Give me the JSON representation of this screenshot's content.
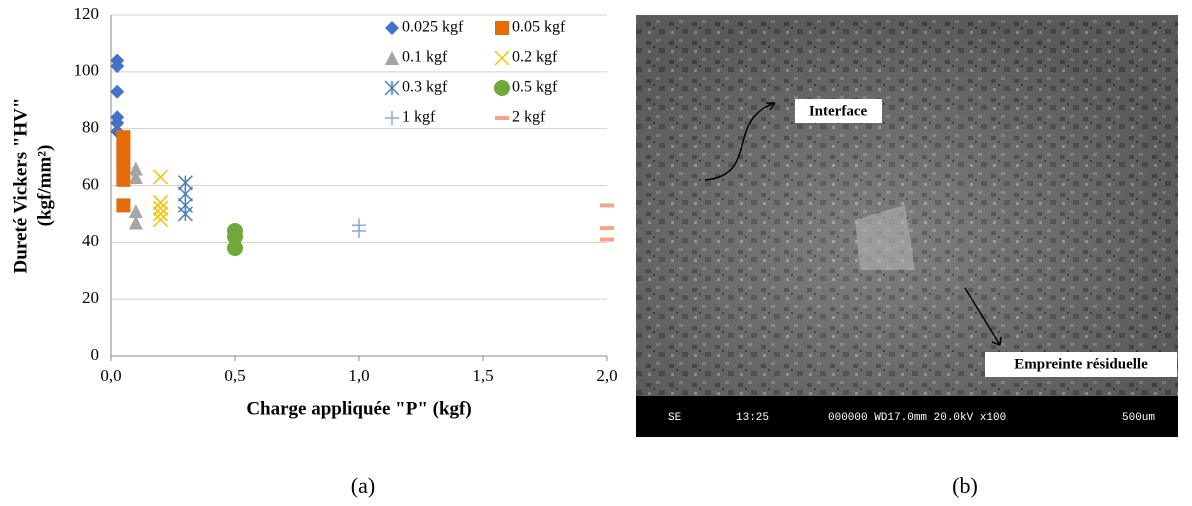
{
  "chart_data": {
    "type": "scatter",
    "x_label": "Charge appliquée \"P\" (kgf)",
    "y_label": [
      "Dureté Vickers \"HV\"",
      "(kgf/mm²)"
    ],
    "xlim": [
      0,
      2.0
    ],
    "xticks": [
      {
        "value": 0,
        "label": "0,0"
      },
      {
        "value": 0.5,
        "label": "0,5"
      },
      {
        "value": 1.0,
        "label": "1,0"
      },
      {
        "value": 1.5,
        "label": "1,5"
      },
      {
        "value": 2.0,
        "label": "2,0"
      }
    ],
    "ylim": [
      0,
      120
    ],
    "yticks": [
      0,
      20,
      40,
      60,
      80,
      100,
      120
    ],
    "grid": true,
    "legend": "top-right",
    "series": [
      {
        "name": "0.025 kgf",
        "color": "#4472c4",
        "marker": "diamond",
        "x": [
          0.025,
          0.025,
          0.025,
          0.025,
          0.025,
          0.025
        ],
        "values": [
          104,
          102,
          93,
          84,
          82,
          79
        ]
      },
      {
        "name": "0.05 kgf",
        "color": "#e46c0a",
        "marker": "square",
        "x": [
          0.05,
          0.05,
          0.05,
          0.05,
          0.05,
          0.05,
          0.05
        ],
        "values": [
          77,
          74,
          71,
          68,
          65,
          62,
          53
        ]
      },
      {
        "name": "0.1 kgf",
        "color": "#a5a5a5",
        "marker": "triangle",
        "x": [
          0.1,
          0.1,
          0.1,
          0.1
        ],
        "values": [
          66,
          63,
          51,
          47
        ]
      },
      {
        "name": "0.2 kgf",
        "color": "#f2c200",
        "marker": "x",
        "x": [
          0.2,
          0.2,
          0.2,
          0.2,
          0.2
        ],
        "values": [
          63,
          54,
          52,
          50,
          48
        ]
      },
      {
        "name": "0.3 kgf",
        "color": "#4a7fb5",
        "marker": "asterisk",
        "x": [
          0.3,
          0.3,
          0.3,
          0.3
        ],
        "values": [
          61,
          57,
          53,
          50
        ]
      },
      {
        "name": "0.5 kgf",
        "color": "#70a83b",
        "marker": "circle",
        "x": [
          0.5,
          0.5,
          0.5
        ],
        "values": [
          44,
          42,
          38
        ]
      },
      {
        "name": "1 kgf",
        "color": "#8fa8d8",
        "marker": "plus",
        "x": [
          1,
          1
        ],
        "values": [
          46,
          44
        ]
      },
      {
        "name": "2 kgf",
        "color": "#f4a582",
        "marker": "dash",
        "x": [
          2,
          2,
          2
        ],
        "values": [
          53,
          45,
          41
        ]
      }
    ]
  },
  "image": {
    "annotations": [
      "Interface",
      "Empreinte résiduelle"
    ],
    "info_bar": [
      "SE",
      "13:25",
      "000000 WD17.0mm 20.0kV x100",
      "500um"
    ]
  },
  "captions": [
    "(a)",
    "(b)"
  ]
}
